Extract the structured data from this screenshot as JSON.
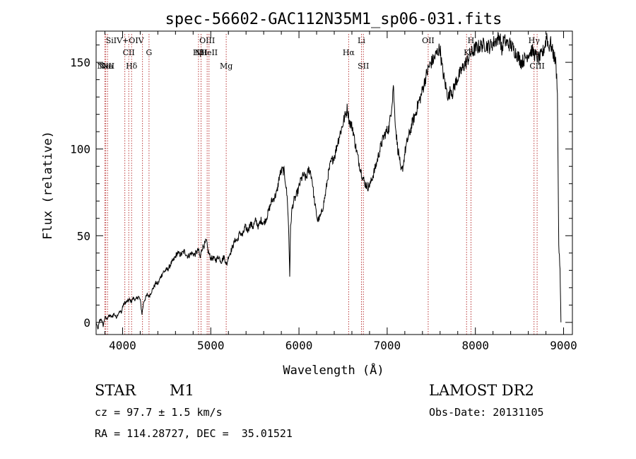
{
  "chart_data": {
    "type": "line",
    "title": "spec-56602-GAC112N35M1_sp06-031.fits",
    "xlabel": "Wavelength (Å)",
    "ylabel": "Flux (relative)",
    "xlim": [
      3700,
      9100
    ],
    "ylim": [
      -7,
      168
    ],
    "x_ticks": [
      4000,
      5000,
      6000,
      7000,
      8000,
      9000
    ],
    "y_ticks": [
      0,
      50,
      100,
      150
    ],
    "grid": false,
    "series": [
      {
        "points": [
          [
            3700,
            0
          ],
          [
            3720,
            -4
          ],
          [
            3740,
            1
          ],
          [
            3760,
            2
          ],
          [
            3780,
            -2
          ],
          [
            3800,
            3
          ],
          [
            3820,
            2
          ],
          [
            3850,
            4
          ],
          [
            3880,
            3
          ],
          [
            3900,
            5
          ],
          [
            3930,
            3
          ],
          [
            3960,
            6
          ],
          [
            3990,
            6
          ],
          [
            4000,
            9
          ],
          [
            4020,
            11
          ],
          [
            4050,
            12
          ],
          [
            4080,
            13
          ],
          [
            4100,
            12
          ],
          [
            4120,
            14
          ],
          [
            4150,
            13
          ],
          [
            4180,
            15
          ],
          [
            4200,
            13
          ],
          [
            4220,
            5
          ],
          [
            4240,
            12
          ],
          [
            4260,
            14
          ],
          [
            4280,
            16
          ],
          [
            4300,
            15
          ],
          [
            4320,
            17
          ],
          [
            4350,
            20
          ],
          [
            4380,
            23
          ],
          [
            4400,
            22
          ],
          [
            4430,
            26
          ],
          [
            4460,
            29
          ],
          [
            4490,
            30
          ],
          [
            4520,
            31
          ],
          [
            4550,
            34
          ],
          [
            4580,
            36
          ],
          [
            4620,
            40
          ],
          [
            4660,
            39
          ],
          [
            4700,
            41
          ],
          [
            4740,
            38
          ],
          [
            4780,
            40
          ],
          [
            4820,
            39
          ],
          [
            4860,
            42
          ],
          [
            4880,
            37
          ],
          [
            4900,
            43
          ],
          [
            4930,
            45
          ],
          [
            4950,
            47
          ],
          [
            4970,
            41
          ],
          [
            5000,
            37
          ],
          [
            5030,
            37
          ],
          [
            5060,
            36
          ],
          [
            5090,
            38
          ],
          [
            5120,
            35
          ],
          [
            5150,
            38
          ],
          [
            5180,
            33
          ],
          [
            5200,
            38
          ],
          [
            5220,
            40
          ],
          [
            5250,
            44
          ],
          [
            5280,
            48
          ],
          [
            5300,
            47
          ],
          [
            5330,
            52
          ],
          [
            5360,
            50
          ],
          [
            5390,
            55
          ],
          [
            5420,
            53
          ],
          [
            5450,
            57
          ],
          [
            5480,
            55
          ],
          [
            5510,
            59
          ],
          [
            5540,
            55
          ],
          [
            5570,
            59
          ],
          [
            5600,
            57
          ],
          [
            5630,
            60
          ],
          [
            5660,
            65
          ],
          [
            5690,
            70
          ],
          [
            5720,
            72
          ],
          [
            5750,
            75
          ],
          [
            5780,
            85
          ],
          [
            5810,
            88
          ],
          [
            5830,
            87
          ],
          [
            5850,
            80
          ],
          [
            5870,
            70
          ],
          [
            5885,
            50
          ],
          [
            5895,
            27
          ],
          [
            5905,
            55
          ],
          [
            5920,
            65
          ],
          [
            5940,
            70
          ],
          [
            5960,
            72
          ],
          [
            5990,
            76
          ],
          [
            6020,
            82
          ],
          [
            6050,
            85
          ],
          [
            6080,
            83
          ],
          [
            6110,
            88
          ],
          [
            6130,
            87
          ],
          [
            6150,
            82
          ],
          [
            6170,
            72
          ],
          [
            6190,
            65
          ],
          [
            6210,
            59
          ],
          [
            6230,
            60
          ],
          [
            6250,
            62
          ],
          [
            6270,
            66
          ],
          [
            6300,
            74
          ],
          [
            6330,
            85
          ],
          [
            6360,
            92
          ],
          [
            6390,
            95
          ],
          [
            6410,
            97
          ],
          [
            6430,
            102
          ],
          [
            6460,
            108
          ],
          [
            6490,
            113
          ],
          [
            6510,
            117
          ],
          [
            6530,
            120
          ],
          [
            6550,
            124
          ],
          [
            6570,
            116
          ],
          [
            6590,
            114
          ],
          [
            6610,
            112
          ],
          [
            6630,
            105
          ],
          [
            6660,
            97
          ],
          [
            6690,
            90
          ],
          [
            6720,
            84
          ],
          [
            6750,
            80
          ],
          [
            6780,
            78
          ],
          [
            6810,
            80
          ],
          [
            6840,
            85
          ],
          [
            6870,
            90
          ],
          [
            6900,
            96
          ],
          [
            6930,
            102
          ],
          [
            6960,
            107
          ],
          [
            6990,
            110
          ],
          [
            7020,
            112
          ],
          [
            7040,
            120
          ],
          [
            7060,
            130
          ],
          [
            7070,
            138
          ],
          [
            7080,
            125
          ],
          [
            7100,
            110
          ],
          [
            7120,
            100
          ],
          [
            7140,
            95
          ],
          [
            7150,
            88
          ],
          [
            7160,
            87
          ],
          [
            7180,
            90
          ],
          [
            7200,
            98
          ],
          [
            7230,
            105
          ],
          [
            7260,
            110
          ],
          [
            7290,
            116
          ],
          [
            7320,
            120
          ],
          [
            7350,
            126
          ],
          [
            7380,
            130
          ],
          [
            7410,
            136
          ],
          [
            7440,
            142
          ],
          [
            7470,
            147
          ],
          [
            7500,
            150
          ],
          [
            7530,
            152
          ],
          [
            7560,
            155
          ],
          [
            7580,
            157
          ],
          [
            7600,
            158
          ],
          [
            7620,
            148
          ],
          [
            7640,
            142
          ],
          [
            7660,
            137
          ],
          [
            7680,
            132
          ],
          [
            7700,
            130
          ],
          [
            7720,
            135
          ],
          [
            7740,
            132
          ],
          [
            7760,
            136
          ],
          [
            7790,
            140
          ],
          [
            7820,
            143
          ],
          [
            7850,
            146
          ],
          [
            7880,
            149
          ],
          [
            7910,
            151
          ],
          [
            7940,
            155
          ],
          [
            7970,
            156
          ],
          [
            8000,
            158
          ],
          [
            8040,
            159
          ],
          [
            8080,
            160
          ],
          [
            8120,
            160
          ],
          [
            8160,
            159
          ],
          [
            8200,
            161
          ],
          [
            8240,
            163
          ],
          [
            8280,
            165
          ],
          [
            8300,
            156
          ],
          [
            8320,
            163
          ],
          [
            8360,
            161
          ],
          [
            8400,
            160
          ],
          [
            8440,
            157
          ],
          [
            8480,
            154
          ],
          [
            8520,
            150
          ],
          [
            8560,
            152
          ],
          [
            8600,
            155
          ],
          [
            8640,
            157
          ],
          [
            8680,
            154
          ],
          [
            8720,
            152
          ],
          [
            8760,
            155
          ],
          [
            8790,
            160
          ],
          [
            8810,
            166
          ],
          [
            8830,
            158
          ],
          [
            8850,
            162
          ],
          [
            8870,
            157
          ],
          [
            8890,
            154
          ],
          [
            8910,
            150
          ],
          [
            8930,
            135
          ],
          [
            8945,
            45
          ],
          [
            8960,
            30
          ],
          [
            8970,
            0
          ]
        ]
      }
    ],
    "line_colors": {
      "spectrum": "#000000",
      "markers": "#b22222",
      "axes": "#000000"
    },
    "lines": [
      {
        "x": 3799,
        "label": "Ne",
        "row": "a"
      },
      {
        "x": 3810,
        "label": "NeII",
        "row": "a"
      },
      {
        "x": 3830,
        "label": "Na",
        "row": "a"
      },
      {
        "x": 4026,
        "label": "SiIV+OIV",
        "row": "b"
      },
      {
        "x": 4070,
        "label": "CII",
        "row": "c"
      },
      {
        "x": 4102,
        "label": "Hδ",
        "row": "d"
      },
      {
        "x": 4226,
        "label": "",
        "row": ""
      },
      {
        "x": 4300,
        "label": "G",
        "row": "c"
      },
      {
        "x": 4861,
        "label": "Hβ",
        "row": "c2"
      },
      {
        "x": 4890,
        "label": "NII",
        "row": "c2"
      },
      {
        "x": 4959,
        "label": "OIII",
        "row": "b"
      },
      {
        "x": 4980,
        "label": "HeII",
        "row": "c2"
      },
      {
        "x": 5175,
        "label": "Mg",
        "row": "d"
      },
      {
        "x": 6563,
        "label": "Hα",
        "row": "c"
      },
      {
        "x": 6708,
        "label": "Li",
        "row": "b"
      },
      {
        "x": 6730,
        "label": "SII",
        "row": "d"
      },
      {
        "x": 7465,
        "label": "OII",
        "row": "b"
      },
      {
        "x": 7900,
        "label": "K",
        "row": "c"
      },
      {
        "x": 7950,
        "label": "H",
        "row": "b"
      },
      {
        "x": 8665,
        "label": "Hγ",
        "row": "b"
      },
      {
        "x": 8700,
        "label": "CIII",
        "row": "d"
      }
    ]
  },
  "info": {
    "object_class": "STAR",
    "subclass": "M1",
    "survey": "LAMOST DR2",
    "redshift": "cz = 97.7 ± 1.5 km/s",
    "obs_date": "Obs-Date: 20131105",
    "coords": "RA = 114.28727, DEC =  35.01521"
  }
}
